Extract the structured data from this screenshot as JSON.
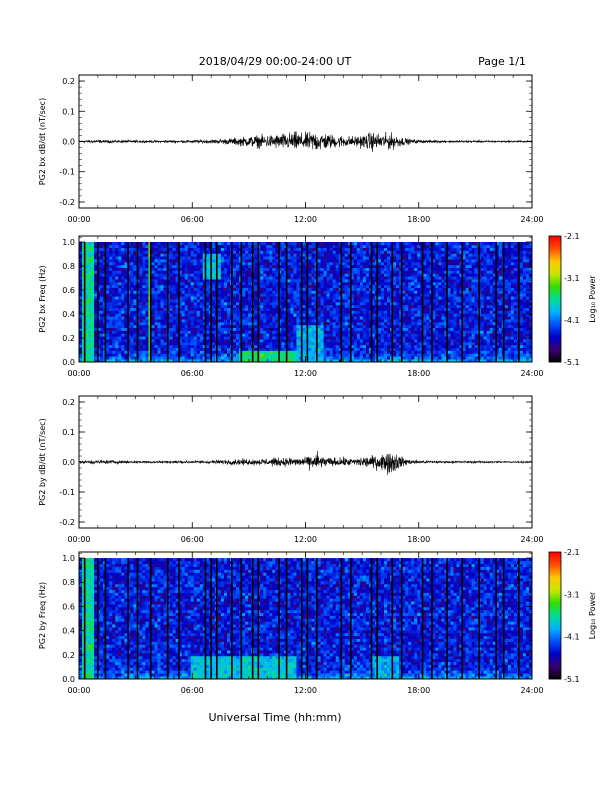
{
  "header": {
    "title": "2018/04/29  00:00-24:00 UT",
    "page": "Page 1/1"
  },
  "footer": {
    "xlabel": "Universal Time (hh:mm)"
  },
  "chart_data": [
    {
      "type": "line",
      "ylabel": "PG2 bx dB/dt (nT/sec)",
      "xlabel": "",
      "x_tick_labels": [
        "00:00",
        "06:00",
        "12:00",
        "18:00",
        "24:00"
      ],
      "y_tick_labels": [
        "-0.2",
        "-0.1",
        "0.0",
        "0.1",
        "0.2"
      ],
      "xlim": [
        0,
        24
      ],
      "ylim": [
        -0.22,
        0.22
      ],
      "series": [
        {
          "x": [
            0,
            1,
            2,
            3,
            4,
            5,
            6,
            7,
            7.5,
            8,
            8.5,
            9,
            9.5,
            10,
            10.5,
            11,
            11.5,
            12,
            12.5,
            13,
            13.5,
            14,
            14.5,
            15,
            15.5,
            16,
            16.5,
            17,
            17.5,
            18,
            19,
            20,
            21,
            22,
            23,
            24
          ],
          "envelope": [
            0.006,
            0.008,
            0.006,
            0.006,
            0.005,
            0.006,
            0.007,
            0.009,
            0.012,
            0.015,
            0.02,
            0.025,
            0.03,
            0.032,
            0.035,
            0.04,
            0.045,
            0.04,
            0.05,
            0.042,
            0.03,
            0.028,
            0.025,
            0.03,
            0.045,
            0.035,
            0.04,
            0.025,
            0.012,
            0.008,
            0.006,
            0.005,
            0.005,
            0.004,
            0.004,
            0.004
          ]
        }
      ]
    },
    {
      "type": "heatmap",
      "ylabel": "PG2 bx Freq (Hz)",
      "xlabel": "",
      "x_tick_labels": [
        "00:00",
        "06:00",
        "12:00",
        "18:00",
        "24:00"
      ],
      "y_tick_labels": [
        "0.0",
        "0.2",
        "0.4",
        "0.6",
        "0.8",
        "1.0"
      ],
      "xlim": [
        0,
        24
      ],
      "ylim": [
        0,
        1.05
      ],
      "colorbar": {
        "label": "Log₁₀ Power",
        "ticks": [
          "-2.1",
          "-3.1",
          "-4.1",
          "-5.1"
        ],
        "range": [
          -5.1,
          -2.1
        ]
      },
      "gap_lines_hours": [
        0.3,
        1.0,
        1.4,
        2.6,
        3.1,
        3.8,
        4.7,
        5.3,
        6.7,
        7.0,
        7.3,
        8.1,
        8.6,
        9.2,
        9.5,
        10.6,
        11.0,
        11.8,
        12.1,
        12.6,
        13.9,
        14.4,
        15.5,
        15.8,
        16.6,
        17.1,
        18.2,
        18.7,
        19.5,
        20.3,
        21.2,
        22.1,
        22.5,
        23.3
      ],
      "enhanced_regions": [
        {
          "x": [
            0.2,
            0.8
          ],
          "y": [
            0.0,
            1.0
          ],
          "level": -3.6
        },
        {
          "x": [
            3.7,
            3.9
          ],
          "y": [
            0.0,
            1.0
          ],
          "level": -3.3
        },
        {
          "x": [
            11.5,
            13.0
          ],
          "y": [
            0.0,
            0.3
          ],
          "level": -3.9
        },
        {
          "x": [
            6.5,
            7.5
          ],
          "y": [
            0.7,
            0.9
          ],
          "level": -3.8
        },
        {
          "x": [
            8.5,
            11.5
          ],
          "y": [
            0.0,
            0.1
          ],
          "level": -3.5
        }
      ],
      "background_level": -4.4
    },
    {
      "type": "line",
      "ylabel": "PG2 by dB/dt (nT/sec)",
      "xlabel": "",
      "x_tick_labels": [
        "00:00",
        "06:00",
        "12:00",
        "18:00",
        "24:00"
      ],
      "y_tick_labels": [
        "-0.2",
        "-0.1",
        "0.0",
        "0.1",
        "0.2"
      ],
      "xlim": [
        0,
        24
      ],
      "ylim": [
        -0.22,
        0.22
      ],
      "series": [
        {
          "x": [
            0,
            1,
            2,
            3,
            4,
            5,
            6,
            7,
            7.5,
            8,
            8.5,
            9,
            9.5,
            10,
            10.5,
            11,
            11.5,
            12,
            12.5,
            13,
            13.5,
            14,
            14.5,
            15,
            15.5,
            16,
            16.5,
            17,
            17.5,
            18,
            19,
            20,
            21,
            22,
            23,
            24
          ],
          "envelope": [
            0.006,
            0.01,
            0.008,
            0.006,
            0.005,
            0.006,
            0.007,
            0.008,
            0.01,
            0.012,
            0.015,
            0.014,
            0.015,
            0.018,
            0.02,
            0.02,
            0.025,
            0.018,
            0.05,
            0.025,
            0.02,
            0.02,
            0.018,
            0.025,
            0.03,
            0.035,
            0.06,
            0.03,
            0.012,
            0.008,
            0.006,
            0.005,
            0.005,
            0.004,
            0.004,
            0.004
          ]
        }
      ]
    },
    {
      "type": "heatmap",
      "ylabel": "PG2 by Freq (Hz)",
      "xlabel": "",
      "x_tick_labels": [
        "00:00",
        "06:00",
        "12:00",
        "18:00",
        "24:00"
      ],
      "y_tick_labels": [
        "0.0",
        "0.2",
        "0.4",
        "0.6",
        "0.8",
        "1.0"
      ],
      "xlim": [
        0,
        24
      ],
      "ylim": [
        0,
        1.05
      ],
      "colorbar": {
        "label": "Log₁₀ Power",
        "ticks": [
          "-2.1",
          "-3.1",
          "-4.1",
          "-5.1"
        ],
        "range": [
          -5.1,
          -2.1
        ]
      },
      "gap_lines_hours": [
        0.3,
        1.0,
        1.4,
        2.6,
        3.1,
        3.8,
        4.7,
        5.3,
        6.7,
        7.0,
        7.3,
        8.1,
        8.6,
        9.2,
        9.5,
        10.6,
        11.0,
        11.8,
        12.1,
        12.6,
        13.9,
        14.4,
        15.5,
        15.8,
        16.6,
        17.1,
        18.2,
        18.7,
        19.5,
        20.3,
        21.2,
        22.1,
        22.5,
        23.3
      ],
      "enhanced_regions": [
        {
          "x": [
            0.2,
            0.8
          ],
          "y": [
            0.0,
            1.0
          ],
          "level": -3.6
        },
        {
          "x": [
            6.0,
            11.5
          ],
          "y": [
            0.0,
            0.2
          ],
          "level": -3.8
        },
        {
          "x": [
            15.5,
            17.0
          ],
          "y": [
            0.0,
            0.2
          ],
          "level": -3.9
        }
      ],
      "background_level": -4.4
    }
  ],
  "colors": {
    "colormap": [
      "#000000",
      "#3a0070",
      "#0000c8",
      "#0050ff",
      "#00b4ff",
      "#00dc96",
      "#32dc00",
      "#c8e600",
      "#ffc800",
      "#ff5000",
      "#ff0000"
    ]
  }
}
